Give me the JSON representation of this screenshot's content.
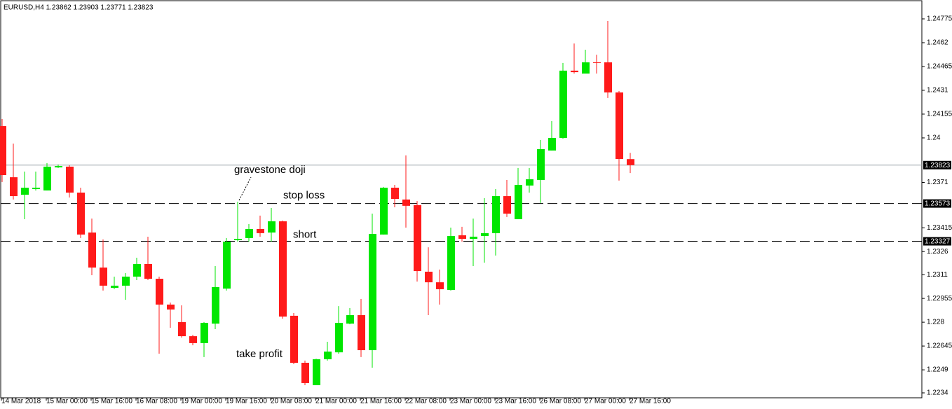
{
  "chart_data": {
    "type": "candlestick",
    "title": "EURUSD,H4  1.23862 1.23903 1.23771 1.23823",
    "categories": [
      "14 Mar 2018",
      null,
      null,
      null,
      "15 Mar 00:00",
      null,
      null,
      null,
      "15 Mar 16:00",
      null,
      null,
      null,
      "16 Mar 08:00",
      null,
      null,
      null,
      "19 Mar 00:00",
      null,
      null,
      null,
      "19 Mar 16:00",
      null,
      null,
      null,
      "20 Mar 08:00",
      null,
      null,
      null,
      "21 Mar 00:00",
      null,
      null,
      null,
      "21 Mar 16:00",
      null,
      null,
      null,
      "22 Mar 08:00",
      null,
      null,
      null,
      "23 Mar 00:00",
      null,
      null,
      null,
      "23 Mar 16:00",
      null,
      null,
      null,
      "26 Mar 08:00",
      null,
      null,
      null,
      "27 Mar 00:00",
      null,
      null,
      null,
      "27 Mar 16:00"
    ],
    "open": [
      1.24077,
      1.23744,
      1.2363,
      1.23667,
      1.23658,
      1.23808,
      1.23813,
      1.23644,
      1.23384,
      1.23156,
      1.23024,
      1.23038,
      1.23097,
      1.23179,
      1.23083,
      1.22915,
      1.22801,
      1.22709,
      1.22664,
      1.22791,
      1.23019,
      1.23334,
      1.23348,
      1.23407,
      1.23384,
      1.23457,
      1.22842,
      1.22536,
      1.2239,
      1.22559,
      1.22604,
      1.22791,
      1.22846,
      1.22618,
      1.23371,
      1.23676,
      1.23599,
      1.23562,
      1.23129,
      1.2306,
      1.2301,
      1.23366,
      1.23343,
      1.23361,
      1.2338,
      1.23621,
      1.23471,
      1.2369,
      1.23726,
      1.23918,
      1.24,
      1.24438,
      1.24419,
      1.24492,
      1.24492,
      1.24296,
      1.23862
    ],
    "high": [
      1.24123,
      1.23963,
      1.23781,
      1.23781,
      1.23836,
      1.23827,
      1.23822,
      1.23676,
      1.23475,
      1.23339,
      1.23097,
      1.2312,
      1.2322,
      1.23357,
      1.23097,
      1.22928,
      1.2291,
      1.22718,
      1.22801,
      1.23165,
      1.23348,
      1.23585,
      1.23439,
      1.23494,
      1.23544,
      1.23462,
      1.2286,
      1.2255,
      1.22563,
      1.22673,
      1.22905,
      1.22892,
      1.22951,
      1.23507,
      1.23681,
      1.23694,
      1.23886,
      1.23589,
      1.23288,
      1.23143,
      1.23416,
      1.23421,
      1.23475,
      1.23608,
      1.23667,
      1.23726,
      1.23804,
      1.23804,
      1.23986,
      1.24109,
      1.24488,
      1.24615,
      1.24574,
      1.24542,
      1.24761,
      1.24305,
      1.23903
    ],
    "low": [
      1.23713,
      1.23599,
      1.23471,
      1.23658,
      1.23658,
      1.23804,
      1.23612,
      1.23348,
      1.23106,
      1.23006,
      1.23015,
      1.22946,
      1.23074,
      1.23074,
      1.22595,
      1.22764,
      1.227,
      1.2265,
      1.22573,
      1.22755,
      1.23006,
      1.23325,
      1.23325,
      1.23357,
      1.23325,
      1.22823,
      1.22527,
      1.2239,
      1.2239,
      1.2255,
      1.22595,
      1.22787,
      1.22573,
      1.22504,
      1.23371,
      1.23548,
      1.23416,
      1.23065,
      1.22846,
      1.22915,
      1.23006,
      1.23325,
      1.23165,
      1.23188,
      1.23234,
      1.23485,
      1.23471,
      1.23644,
      1.23576,
      1.23918,
      1.23995,
      1.24419,
      1.24419,
      1.24419,
      1.2426,
      1.23722,
      1.23771
    ],
    "close": [
      1.23758,
      1.23621,
      1.23676,
      1.23676,
      1.23813,
      1.23817,
      1.23644,
      1.23371,
      1.23156,
      1.23038,
      1.23038,
      1.23097,
      1.23179,
      1.23083,
      1.22915,
      1.22883,
      1.22709,
      1.22664,
      1.22796,
      1.23029,
      1.23325,
      1.23343,
      1.23407,
      1.2338,
      1.23457,
      1.22837,
      1.22536,
      1.22404,
      1.22559,
      1.22609,
      1.22796,
      1.22846,
      1.22618,
      1.23375,
      1.23676,
      1.23603,
      1.23558,
      1.23133,
      1.2306,
      1.23015,
      1.23361,
      1.23343,
      1.23357,
      1.2338,
      1.23621,
      1.23507,
      1.23694,
      1.23731,
      1.23927,
      1.24,
      1.24438,
      1.24428,
      1.24492,
      1.24488,
      1.24296,
      1.23863,
      1.23823
    ],
    "up_color": "#00e600",
    "down_color": "#ff1a1a",
    "ylim": [
      1.22308,
      1.24898
    ],
    "yticks": [
      1.24775,
      1.2462,
      1.24465,
      1.2431,
      1.24155,
      1.24,
      1.2371,
      1.23415,
      1.2326,
      1.2311,
      1.22955,
      1.228,
      1.22645,
      1.2249,
      1.2234
    ],
    "hlines": [
      {
        "value": 1.23823,
        "style": "solid",
        "color": "#9aa3a8"
      },
      {
        "name": "stop loss",
        "value": 1.23573,
        "style": "dashed",
        "color": "#000000"
      },
      {
        "name": "short",
        "value": 1.23327,
        "style": "dashed",
        "color": "#000000"
      }
    ],
    "annotations": [
      "gravestone doji",
      "take profit"
    ]
  }
}
